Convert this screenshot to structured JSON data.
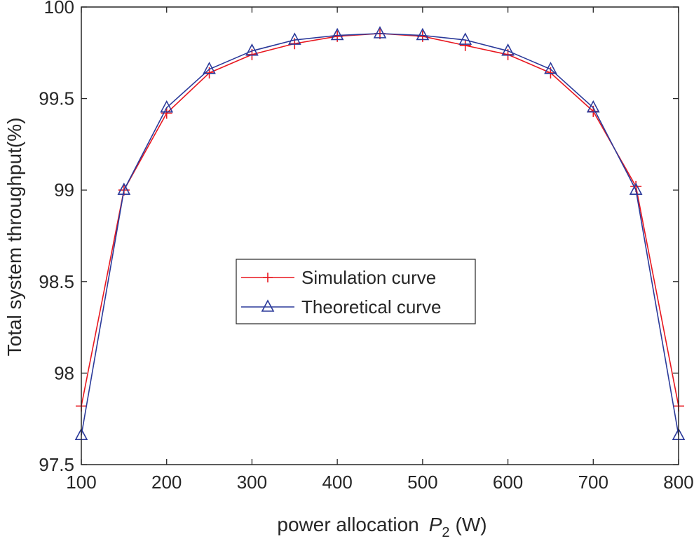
{
  "chart_data": {
    "type": "line",
    "title": "",
    "xlabel_prefix": "power allocation",
    "xlabel_symbol": "P",
    "xlabel_subscript": "2",
    "xlabel_suffix": "(W)",
    "ylabel": "Total system throughput(%)",
    "xlim": [
      100,
      800
    ],
    "ylim": [
      97.5,
      100
    ],
    "xticks": [
      100,
      200,
      300,
      400,
      500,
      600,
      700,
      800
    ],
    "yticks": [
      97.5,
      98,
      98.5,
      99,
      99.5,
      100
    ],
    "xtick_labels": [
      "100",
      "200",
      "300",
      "400",
      "500",
      "600",
      "700",
      "800"
    ],
    "ytick_labels": [
      "97.5",
      "98",
      "98.5",
      "99",
      "99.5",
      "100"
    ],
    "grid": false,
    "legend_position": "center",
    "x": [
      100,
      150,
      200,
      250,
      300,
      350,
      400,
      450,
      500,
      550,
      600,
      650,
      700,
      750,
      800
    ],
    "series": [
      {
        "name": "Simulation curve",
        "color": "#e8171f",
        "marker": "plus",
        "values": [
          97.82,
          99.0,
          99.42,
          99.64,
          99.74,
          99.8,
          99.84,
          99.855,
          99.84,
          99.79,
          99.74,
          99.64,
          99.43,
          99.02,
          97.82
        ]
      },
      {
        "name": "Theoretical curve",
        "color": "#2b3a9a",
        "marker": "triangle",
        "values": [
          97.66,
          99.0,
          99.45,
          99.66,
          99.76,
          99.82,
          99.845,
          99.855,
          99.845,
          99.82,
          99.76,
          99.66,
          99.45,
          99.0,
          97.66
        ]
      }
    ]
  }
}
